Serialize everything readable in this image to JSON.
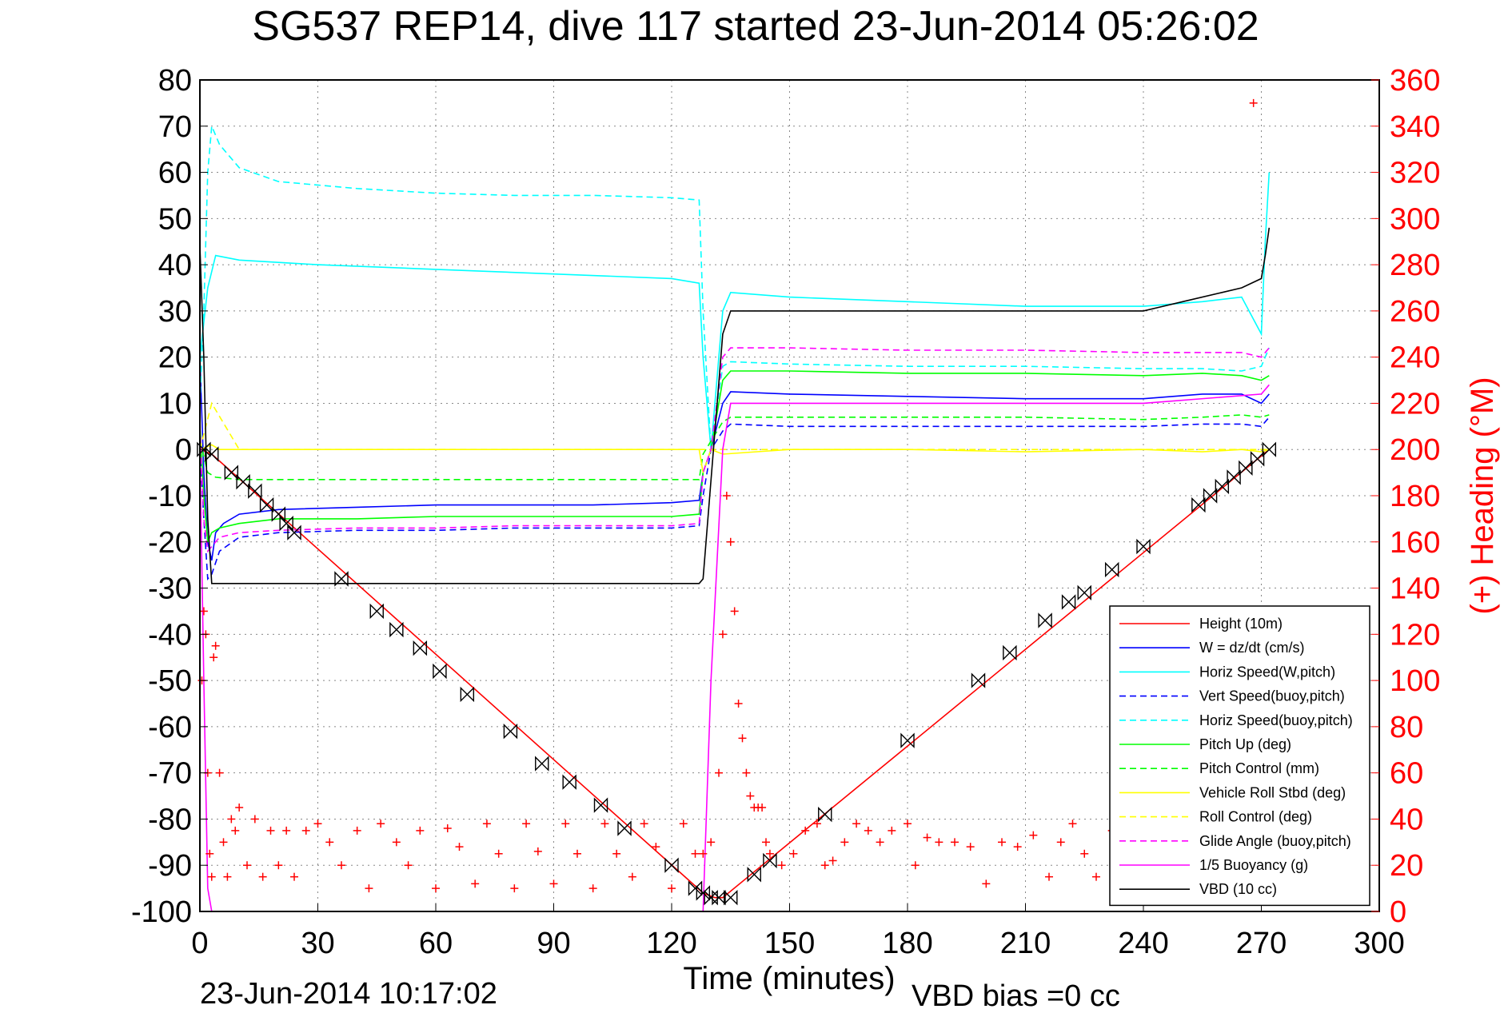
{
  "chart_data": {
    "type": "line",
    "title": "SG537 REP14, dive 117 started 23-Jun-2014 05:26:02",
    "xlabel": "Time (minutes)",
    "ylabel": "",
    "y2label": "(+) Heading (°M)",
    "xlim": [
      0,
      300
    ],
    "ylim": [
      -100,
      80
    ],
    "y2lim": [
      0,
      360
    ],
    "xticks": [
      "0",
      "30",
      "60",
      "90",
      "120",
      "150",
      "180",
      "210",
      "240",
      "270",
      "300"
    ],
    "yticks": [
      "80",
      "70",
      "60",
      "50",
      "40",
      "30",
      "20",
      "10",
      "0",
      "-10",
      "-20",
      "-30",
      "-40",
      "-50",
      "-60",
      "-70",
      "-80",
      "-90",
      "-100"
    ],
    "y2ticks": [
      "360",
      "340",
      "320",
      "300",
      "280",
      "260",
      "240",
      "220",
      "200",
      "180",
      "160",
      "140",
      "120",
      "100",
      "80",
      "60",
      "40",
      "20",
      "0"
    ],
    "grid": true,
    "legend_position": "lower-right",
    "bottom_left_text": "23-Jun-2014 10:17:02",
    "bottom_right_text": "VBD bias =0 cc",
    "series": [
      {
        "name": "Height (10m)",
        "color": "#ff0000",
        "style": "solid",
        "x": [
          0,
          3,
          128,
          131,
          133,
          272
        ],
        "y": [
          0,
          -1,
          -96,
          -97,
          -97,
          0
        ]
      },
      {
        "name": "W = dz/dt (cm/s)",
        "color": "#0000ff",
        "style": "solid",
        "x": [
          0,
          1,
          2,
          3,
          4,
          6,
          10,
          20,
          40,
          60,
          80,
          100,
          120,
          127,
          128,
          130,
          133,
          135,
          150,
          180,
          210,
          240,
          255,
          265,
          270,
          272
        ],
        "y": [
          20,
          -5,
          -20,
          -24,
          -18,
          -16,
          -14,
          -13,
          -12.5,
          -12,
          -12,
          -12,
          -11.5,
          -11,
          -5,
          0,
          10,
          12.5,
          12,
          11.5,
          11,
          11,
          12,
          12,
          10,
          12
        ]
      },
      {
        "name": "Horiz Speed(W,pitch)",
        "color": "#00ffff",
        "style": "solid",
        "x": [
          0,
          2,
          4,
          10,
          30,
          60,
          90,
          120,
          127,
          128,
          130,
          133,
          135,
          150,
          180,
          210,
          240,
          255,
          265,
          270,
          271,
          272
        ],
        "y": [
          20,
          35,
          42,
          41,
          40,
          39,
          38,
          37,
          36,
          20,
          0,
          30,
          34,
          33,
          32,
          31,
          31,
          32,
          33,
          25,
          45,
          60
        ]
      },
      {
        "name": "Vert Speed(buoy,pitch)",
        "color": "#0000ff",
        "style": "dashed",
        "x": [
          0,
          1,
          2,
          3,
          5,
          10,
          20,
          40,
          60,
          80,
          100,
          120,
          127,
          128,
          130,
          133,
          135,
          150,
          180,
          210,
          240,
          255,
          265,
          270,
          272
        ],
        "y": [
          0,
          -15,
          -28,
          -27,
          -22,
          -19,
          -18,
          -17.5,
          -17.5,
          -17,
          -17,
          -17,
          -16.5,
          -10,
          0,
          4,
          5.5,
          5,
          5,
          5,
          5,
          5.5,
          5.5,
          5,
          7
        ]
      },
      {
        "name": "Horiz Speed(buoy,pitch)",
        "color": "#00ffff",
        "style": "dashed",
        "x": [
          0,
          1,
          2,
          3,
          5,
          10,
          20,
          40,
          60,
          80,
          100,
          120,
          127,
          128,
          130,
          133,
          135,
          150,
          180,
          210,
          240,
          255,
          265,
          270,
          272
        ],
        "y": [
          10,
          30,
          60,
          70,
          66,
          61,
          58,
          56.5,
          55.5,
          55,
          55,
          54.5,
          54,
          30,
          0,
          18,
          19,
          18.5,
          18,
          18,
          17.5,
          17.5,
          17,
          18,
          22
        ]
      },
      {
        "name": "Pitch Up (deg)",
        "color": "#00ff00",
        "style": "solid",
        "x": [
          0,
          1,
          2,
          3,
          5,
          10,
          20,
          40,
          60,
          80,
          100,
          120,
          127,
          128,
          130,
          133,
          135,
          150,
          180,
          210,
          240,
          255,
          265,
          270,
          272
        ],
        "y": [
          5,
          -10,
          -20,
          -18,
          -17,
          -16,
          -15,
          -15,
          -14.5,
          -14.5,
          -14.5,
          -14.5,
          -14,
          -5,
          0,
          15,
          17,
          17,
          16.5,
          16.5,
          16,
          16.5,
          16,
          15,
          16
        ]
      },
      {
        "name": "Pitch Control (mm)",
        "color": "#00ff00",
        "style": "dashed",
        "x": [
          0,
          2,
          4,
          10,
          60,
          120,
          127,
          128,
          133,
          135,
          180,
          210,
          240,
          255,
          265,
          270,
          272
        ],
        "y": [
          2,
          -5,
          -6,
          -6.5,
          -6.5,
          -6.5,
          -6.5,
          -1,
          6,
          7,
          7,
          7,
          6.5,
          7,
          7.5,
          7,
          7.5
        ]
      },
      {
        "name": "Vehicle Roll Stbd (deg)",
        "color": "#ffff00",
        "style": "solid",
        "x": [
          0,
          3,
          5,
          10,
          20,
          60,
          90,
          120,
          127,
          128,
          130,
          133,
          150,
          180,
          210,
          240,
          255,
          265,
          270,
          272
        ],
        "y": [
          0,
          1,
          0,
          0,
          0,
          0,
          0,
          0,
          0,
          -5,
          0,
          -1,
          0,
          0,
          -0.5,
          0,
          -0.5,
          0,
          -0.5,
          0
        ]
      },
      {
        "name": "Roll Control (deg)",
        "color": "#ffff00",
        "style": "dashed",
        "x": [
          0,
          3,
          10,
          60,
          120,
          127,
          133,
          180,
          240,
          272
        ],
        "y": [
          0,
          10,
          0,
          0,
          0,
          0,
          0,
          0,
          0,
          0
        ]
      },
      {
        "name": "Glide Angle (buoy,pitch)",
        "color": "#ff00ff",
        "style": "dashed",
        "x": [
          0,
          1,
          2,
          3,
          5,
          10,
          20,
          40,
          60,
          80,
          100,
          120,
          127,
          128,
          130,
          133,
          135,
          150,
          180,
          210,
          240,
          255,
          265,
          270,
          272
        ],
        "y": [
          5,
          -15,
          -22,
          -21,
          -19,
          -18,
          -17.5,
          -17,
          -17,
          -16.5,
          -16.5,
          -16.5,
          -16,
          -5,
          0,
          20,
          22,
          22,
          21.5,
          21.5,
          21,
          21,
          21,
          20,
          22
        ]
      },
      {
        "name": "1/5 Buoyancy (g)",
        "color": "#ff00ff",
        "style": "solid",
        "x": [
          0,
          1,
          2,
          3,
          127,
          128,
          130,
          133,
          135,
          240,
          270,
          272
        ],
        "y": [
          0,
          -50,
          -95,
          -100,
          -100,
          -100,
          -50,
          0,
          10,
          10,
          12,
          14
        ]
      },
      {
        "name": "VBD (10 cc)",
        "color": "#000000",
        "style": "solid",
        "x": [
          0,
          1,
          2,
          3,
          4,
          127,
          128,
          133,
          135,
          240,
          245,
          250,
          260,
          265,
          270,
          271,
          272
        ],
        "y": [
          44,
          20,
          -15,
          -29,
          -29,
          -29,
          -28,
          25,
          30,
          30,
          31,
          32,
          34,
          35,
          37,
          42,
          48
        ]
      }
    ],
    "heading": {
      "name": "Heading",
      "color": "#ff0000",
      "marker": "+",
      "axis": "right",
      "x": [
        0.5,
        1,
        1.5,
        2,
        2.5,
        3,
        3.5,
        4,
        5,
        6,
        7,
        8,
        9,
        10,
        12,
        14,
        16,
        18,
        20,
        22,
        24,
        27,
        30,
        33,
        36,
        40,
        43,
        46,
        50,
        53,
        56,
        60,
        63,
        66,
        70,
        73,
        76,
        80,
        83,
        86,
        90,
        93,
        96,
        100,
        103,
        106,
        110,
        113,
        116,
        120,
        123,
        126,
        128,
        130,
        132,
        133,
        134,
        135,
        136,
        137,
        138,
        139,
        140,
        141,
        142,
        143,
        144,
        145,
        148,
        151,
        154,
        157,
        159,
        161,
        164,
        167,
        170,
        173,
        176,
        180,
        182,
        185,
        188,
        192,
        196,
        200,
        204,
        208,
        212,
        216,
        219,
        222,
        225,
        228,
        232,
        236,
        240,
        244,
        248,
        252,
        256,
        260,
        264,
        268
      ],
      "y": [
        100,
        130,
        120,
        60,
        25,
        15,
        110,
        115,
        60,
        30,
        15,
        40,
        35,
        45,
        20,
        40,
        15,
        35,
        20,
        35,
        15,
        35,
        38,
        30,
        20,
        35,
        10,
        38,
        30,
        20,
        35,
        10,
        36,
        28,
        12,
        38,
        25,
        10,
        38,
        26,
        12,
        38,
        25,
        10,
        38,
        25,
        15,
        38,
        28,
        10,
        38,
        25,
        25,
        30,
        60,
        120,
        180,
        160,
        130,
        90,
        75,
        60,
        50,
        45,
        45,
        45,
        30,
        25,
        20,
        25,
        35,
        38,
        20,
        22,
        30,
        38,
        35,
        30,
        35,
        38,
        20,
        32,
        30,
        30,
        28,
        12,
        30,
        28,
        33,
        15,
        30,
        38,
        25,
        15,
        35,
        30,
        20,
        10,
        15,
        25,
        30,
        35,
        40,
        350
      ]
    },
    "wpt_markers": {
      "name": "Depth markers",
      "color": "#000000",
      "x": [
        1,
        3,
        8,
        11,
        14,
        17,
        20,
        22,
        24,
        36,
        45,
        50,
        56,
        61,
        68,
        79,
        87,
        94,
        102,
        108,
        120,
        126,
        128,
        130,
        132,
        135,
        141,
        145,
        159,
        180,
        198,
        206,
        215,
        221,
        225,
        232,
        240,
        254,
        257,
        260,
        263,
        266,
        269,
        272
      ],
      "y": [
        0,
        -1,
        -5,
        -7,
        -9,
        -12,
        -14,
        -16,
        -18,
        -28,
        -35,
        -39,
        -43,
        -48,
        -53,
        -61,
        -68,
        -72,
        -77,
        -82,
        -90,
        -95,
        -96,
        -97,
        -97,
        -97,
        -92,
        -89,
        -79,
        -63,
        -50,
        -44,
        -37,
        -33,
        -31,
        -26,
        -21,
        -12,
        -10,
        -8,
        -6,
        -4,
        -2,
        0
      ]
    }
  }
}
